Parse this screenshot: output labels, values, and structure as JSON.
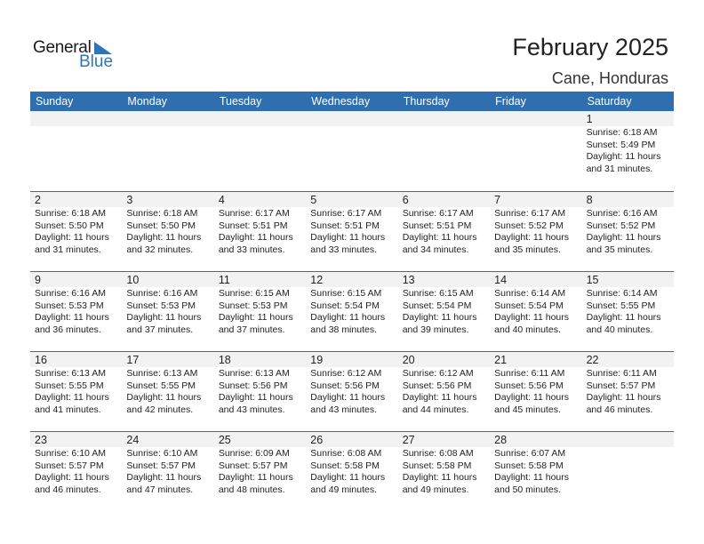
{
  "logo": {
    "line1": "General",
    "line2": "Blue"
  },
  "title": "February 2025",
  "location": "Cane, Honduras",
  "colors": {
    "accent": "#2f6fb0",
    "day_row_bg": "#f2f2f2"
  },
  "weekdays": [
    "Sunday",
    "Monday",
    "Tuesday",
    "Wednesday",
    "Thursday",
    "Friday",
    "Saturday"
  ],
  "weeks": [
    [
      {},
      {},
      {},
      {},
      {},
      {},
      {
        "day": "1",
        "sunrise": "Sunrise: 6:18 AM",
        "sunset": "Sunset: 5:49 PM",
        "daylight": "Daylight: 11 hours",
        "minutes": "and 31 minutes."
      }
    ],
    [
      {
        "day": "2",
        "sunrise": "Sunrise: 6:18 AM",
        "sunset": "Sunset: 5:50 PM",
        "daylight": "Daylight: 11 hours",
        "minutes": "and 31 minutes."
      },
      {
        "day": "3",
        "sunrise": "Sunrise: 6:18 AM",
        "sunset": "Sunset: 5:50 PM",
        "daylight": "Daylight: 11 hours",
        "minutes": "and 32 minutes."
      },
      {
        "day": "4",
        "sunrise": "Sunrise: 6:17 AM",
        "sunset": "Sunset: 5:51 PM",
        "daylight": "Daylight: 11 hours",
        "minutes": "and 33 minutes."
      },
      {
        "day": "5",
        "sunrise": "Sunrise: 6:17 AM",
        "sunset": "Sunset: 5:51 PM",
        "daylight": "Daylight: 11 hours",
        "minutes": "and 33 minutes."
      },
      {
        "day": "6",
        "sunrise": "Sunrise: 6:17 AM",
        "sunset": "Sunset: 5:51 PM",
        "daylight": "Daylight: 11 hours",
        "minutes": "and 34 minutes."
      },
      {
        "day": "7",
        "sunrise": "Sunrise: 6:17 AM",
        "sunset": "Sunset: 5:52 PM",
        "daylight": "Daylight: 11 hours",
        "minutes": "and 35 minutes."
      },
      {
        "day": "8",
        "sunrise": "Sunrise: 6:16 AM",
        "sunset": "Sunset: 5:52 PM",
        "daylight": "Daylight: 11 hours",
        "minutes": "and 35 minutes."
      }
    ],
    [
      {
        "day": "9",
        "sunrise": "Sunrise: 6:16 AM",
        "sunset": "Sunset: 5:53 PM",
        "daylight": "Daylight: 11 hours",
        "minutes": "and 36 minutes."
      },
      {
        "day": "10",
        "sunrise": "Sunrise: 6:16 AM",
        "sunset": "Sunset: 5:53 PM",
        "daylight": "Daylight: 11 hours",
        "minutes": "and 37 minutes."
      },
      {
        "day": "11",
        "sunrise": "Sunrise: 6:15 AM",
        "sunset": "Sunset: 5:53 PM",
        "daylight": "Daylight: 11 hours",
        "minutes": "and 37 minutes."
      },
      {
        "day": "12",
        "sunrise": "Sunrise: 6:15 AM",
        "sunset": "Sunset: 5:54 PM",
        "daylight": "Daylight: 11 hours",
        "minutes": "and 38 minutes."
      },
      {
        "day": "13",
        "sunrise": "Sunrise: 6:15 AM",
        "sunset": "Sunset: 5:54 PM",
        "daylight": "Daylight: 11 hours",
        "minutes": "and 39 minutes."
      },
      {
        "day": "14",
        "sunrise": "Sunrise: 6:14 AM",
        "sunset": "Sunset: 5:54 PM",
        "daylight": "Daylight: 11 hours",
        "minutes": "and 40 minutes."
      },
      {
        "day": "15",
        "sunrise": "Sunrise: 6:14 AM",
        "sunset": "Sunset: 5:55 PM",
        "daylight": "Daylight: 11 hours",
        "minutes": "and 40 minutes."
      }
    ],
    [
      {
        "day": "16",
        "sunrise": "Sunrise: 6:13 AM",
        "sunset": "Sunset: 5:55 PM",
        "daylight": "Daylight: 11 hours",
        "minutes": "and 41 minutes."
      },
      {
        "day": "17",
        "sunrise": "Sunrise: 6:13 AM",
        "sunset": "Sunset: 5:55 PM",
        "daylight": "Daylight: 11 hours",
        "minutes": "and 42 minutes."
      },
      {
        "day": "18",
        "sunrise": "Sunrise: 6:13 AM",
        "sunset": "Sunset: 5:56 PM",
        "daylight": "Daylight: 11 hours",
        "minutes": "and 43 minutes."
      },
      {
        "day": "19",
        "sunrise": "Sunrise: 6:12 AM",
        "sunset": "Sunset: 5:56 PM",
        "daylight": "Daylight: 11 hours",
        "minutes": "and 43 minutes."
      },
      {
        "day": "20",
        "sunrise": "Sunrise: 6:12 AM",
        "sunset": "Sunset: 5:56 PM",
        "daylight": "Daylight: 11 hours",
        "minutes": "and 44 minutes."
      },
      {
        "day": "21",
        "sunrise": "Sunrise: 6:11 AM",
        "sunset": "Sunset: 5:56 PM",
        "daylight": "Daylight: 11 hours",
        "minutes": "and 45 minutes."
      },
      {
        "day": "22",
        "sunrise": "Sunrise: 6:11 AM",
        "sunset": "Sunset: 5:57 PM",
        "daylight": "Daylight: 11 hours",
        "minutes": "and 46 minutes."
      }
    ],
    [
      {
        "day": "23",
        "sunrise": "Sunrise: 6:10 AM",
        "sunset": "Sunset: 5:57 PM",
        "daylight": "Daylight: 11 hours",
        "minutes": "and 46 minutes."
      },
      {
        "day": "24",
        "sunrise": "Sunrise: 6:10 AM",
        "sunset": "Sunset: 5:57 PM",
        "daylight": "Daylight: 11 hours",
        "minutes": "and 47 minutes."
      },
      {
        "day": "25",
        "sunrise": "Sunrise: 6:09 AM",
        "sunset": "Sunset: 5:57 PM",
        "daylight": "Daylight: 11 hours",
        "minutes": "and 48 minutes."
      },
      {
        "day": "26",
        "sunrise": "Sunrise: 6:08 AM",
        "sunset": "Sunset: 5:58 PM",
        "daylight": "Daylight: 11 hours",
        "minutes": "and 49 minutes."
      },
      {
        "day": "27",
        "sunrise": "Sunrise: 6:08 AM",
        "sunset": "Sunset: 5:58 PM",
        "daylight": "Daylight: 11 hours",
        "minutes": "and 49 minutes."
      },
      {
        "day": "28",
        "sunrise": "Sunrise: 6:07 AM",
        "sunset": "Sunset: 5:58 PM",
        "daylight": "Daylight: 11 hours",
        "minutes": "and 50 minutes."
      },
      {}
    ]
  ]
}
